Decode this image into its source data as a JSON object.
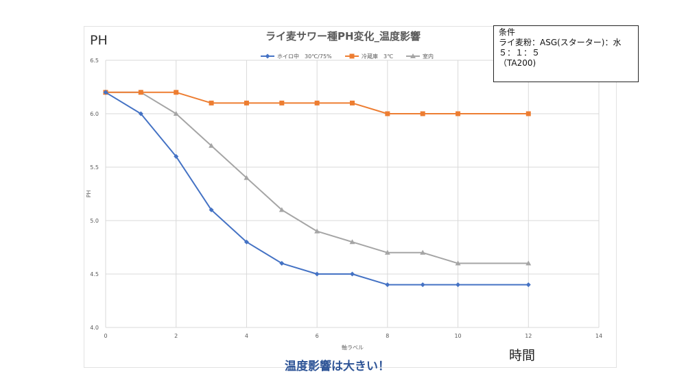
{
  "labels": {
    "y_corner": "PH",
    "x_corner": "時間",
    "bottom_note": "温度影響は大きい！"
  },
  "conditions": {
    "title": "条件",
    "line1": "ライ麦粉：ASG(スターター)：水",
    "line2": "５：１：５",
    "line3": "（TA200)"
  },
  "chart_data": {
    "type": "line",
    "title": "ライ麦サワー種PH変化_温度影響",
    "xlabel": "軸ラベル",
    "ylabel": "PH",
    "xlim": [
      0,
      14
    ],
    "ylim": [
      4.0,
      6.5
    ],
    "xticks": [
      0,
      2,
      4,
      6,
      8,
      10,
      12,
      14
    ],
    "yticks": [
      4.0,
      4.5,
      5.0,
      5.5,
      6.0,
      6.5
    ],
    "grid": true,
    "legend_position": "top",
    "x": [
      0,
      1,
      2,
      3,
      4,
      5,
      6,
      7,
      8,
      9,
      10,
      12
    ],
    "series": [
      {
        "name": "ホイロ中　30℃/75%",
        "color": "#4472c4",
        "marker": "diamond",
        "values": [
          6.2,
          6.0,
          5.6,
          5.1,
          4.8,
          4.6,
          4.5,
          4.5,
          4.4,
          4.4,
          4.4,
          4.4
        ]
      },
      {
        "name": "冷蔵庫　3℃",
        "color": "#ed7d31",
        "marker": "square",
        "values": [
          6.2,
          6.2,
          6.2,
          6.1,
          6.1,
          6.1,
          6.1,
          6.1,
          6.0,
          6.0,
          6.0,
          6.0
        ]
      },
      {
        "name": "室内",
        "color": "#a5a5a5",
        "marker": "triangle",
        "values": [
          6.2,
          6.2,
          6.0,
          5.7,
          5.4,
          5.1,
          4.9,
          4.8,
          4.7,
          4.7,
          4.6,
          4.6
        ]
      }
    ]
  }
}
